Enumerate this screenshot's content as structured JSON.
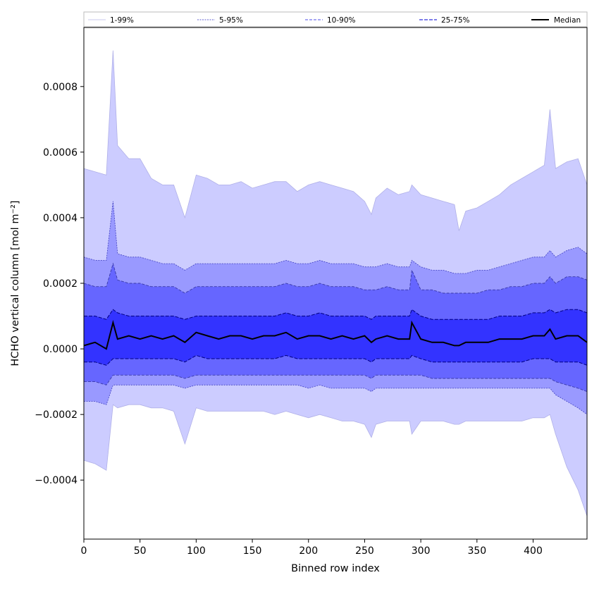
{
  "chart_data": {
    "type": "area",
    "title": "",
    "xlabel": "Binned row index",
    "ylabel": "HCHO vertical column [mol m⁻²]",
    "xlim": [
      0,
      448
    ],
    "ylim": [
      -0.00058,
      0.00098
    ],
    "xticks": [
      0,
      50,
      100,
      150,
      200,
      250,
      300,
      350,
      400
    ],
    "xtick_labels": [
      "0",
      "50",
      "100",
      "150",
      "200",
      "250",
      "300",
      "350",
      "400"
    ],
    "yticks": [
      -0.0004,
      -0.0002,
      0.0,
      0.0002,
      0.0004,
      0.0006,
      0.0008
    ],
    "ytick_labels": [
      "−0.0004",
      "−0.0002",
      "0.0000",
      "0.0002",
      "0.0004",
      "0.0006",
      "0.0008"
    ],
    "grid": false,
    "legend_position": "top (above plot, single row)",
    "legend": [
      "1-99%",
      "5-95%",
      "10-90%",
      "25-75%",
      "Median"
    ],
    "colors": {
      "band_1_99": "#ccccff",
      "band_5_95": "#9999ff",
      "band_10_90": "#6666ff",
      "band_25_75": "#3333ff",
      "median": "#000000",
      "line_1_99": "#b0b0e8",
      "line_5_95": "#4040c0",
      "line_10_90": "#3a3aa8",
      "line_25_75": "#000080"
    },
    "x": [
      0,
      10,
      20,
      26,
      30,
      40,
      50,
      60,
      70,
      80,
      90,
      100,
      110,
      120,
      130,
      140,
      150,
      160,
      170,
      180,
      190,
      200,
      210,
      220,
      230,
      240,
      250,
      256,
      260,
      270,
      280,
      290,
      292,
      300,
      310,
      320,
      330,
      334,
      340,
      350,
      360,
      370,
      380,
      390,
      400,
      410,
      415,
      420,
      430,
      440,
      448
    ],
    "series": [
      {
        "name": "1-99% upper",
        "values": [
          0.00055,
          0.00054,
          0.00053,
          0.00091,
          0.00062,
          0.00058,
          0.00058,
          0.00052,
          0.0005,
          0.0005,
          0.0004,
          0.00053,
          0.00052,
          0.0005,
          0.0005,
          0.00051,
          0.00049,
          0.0005,
          0.00051,
          0.00051,
          0.00048,
          0.0005,
          0.00051,
          0.0005,
          0.00049,
          0.00048,
          0.00045,
          0.00041,
          0.00046,
          0.00049,
          0.00047,
          0.00048,
          0.0005,
          0.00047,
          0.00046,
          0.00045,
          0.00044,
          0.00036,
          0.00042,
          0.00043,
          0.00045,
          0.00047,
          0.0005,
          0.00052,
          0.00054,
          0.00056,
          0.00073,
          0.00055,
          0.00057,
          0.00058,
          0.0005
        ]
      },
      {
        "name": "5-95% upper",
        "values": [
          0.00028,
          0.00027,
          0.00027,
          0.00045,
          0.00029,
          0.00028,
          0.00028,
          0.00027,
          0.00026,
          0.00026,
          0.00024,
          0.00026,
          0.00026,
          0.00026,
          0.00026,
          0.00026,
          0.00026,
          0.00026,
          0.00026,
          0.00027,
          0.00026,
          0.00026,
          0.00027,
          0.00026,
          0.00026,
          0.00026,
          0.00025,
          0.00025,
          0.00025,
          0.00026,
          0.00025,
          0.00025,
          0.00027,
          0.00025,
          0.00024,
          0.00024,
          0.00023,
          0.00023,
          0.00023,
          0.00024,
          0.00024,
          0.00025,
          0.00026,
          0.00027,
          0.00028,
          0.00028,
          0.0003,
          0.00028,
          0.0003,
          0.00031,
          0.00029
        ]
      },
      {
        "name": "10-90% upper",
        "values": [
          0.0002,
          0.00019,
          0.00019,
          0.00026,
          0.00021,
          0.0002,
          0.0002,
          0.00019,
          0.00019,
          0.00019,
          0.00017,
          0.00019,
          0.00019,
          0.00019,
          0.00019,
          0.00019,
          0.00019,
          0.00019,
          0.00019,
          0.0002,
          0.00019,
          0.00019,
          0.0002,
          0.00019,
          0.00019,
          0.00019,
          0.00018,
          0.00018,
          0.00018,
          0.00019,
          0.00018,
          0.00018,
          0.00024,
          0.00018,
          0.00018,
          0.00017,
          0.00017,
          0.00017,
          0.00017,
          0.00017,
          0.00018,
          0.00018,
          0.00019,
          0.00019,
          0.0002,
          0.0002,
          0.00022,
          0.0002,
          0.00022,
          0.00022,
          0.00021
        ]
      },
      {
        "name": "25-75% upper",
        "values": [
          0.0001,
          0.0001,
          9e-05,
          0.00012,
          0.00011,
          0.0001,
          0.0001,
          0.0001,
          0.0001,
          0.0001,
          9e-05,
          0.0001,
          0.0001,
          0.0001,
          0.0001,
          0.0001,
          0.0001,
          0.0001,
          0.0001,
          0.00011,
          0.0001,
          0.0001,
          0.00011,
          0.0001,
          0.0001,
          0.0001,
          0.0001,
          9e-05,
          0.0001,
          0.0001,
          0.0001,
          0.0001,
          0.00012,
          0.0001,
          9e-05,
          9e-05,
          9e-05,
          9e-05,
          9e-05,
          9e-05,
          9e-05,
          0.0001,
          0.0001,
          0.0001,
          0.00011,
          0.00011,
          0.00012,
          0.00011,
          0.00012,
          0.00012,
          0.00011
        ]
      },
      {
        "name": "Median",
        "values": [
          1e-05,
          2e-05,
          0.0,
          8e-05,
          3e-05,
          4e-05,
          3e-05,
          4e-05,
          3e-05,
          4e-05,
          2e-05,
          5e-05,
          4e-05,
          3e-05,
          4e-05,
          4e-05,
          3e-05,
          4e-05,
          4e-05,
          5e-05,
          3e-05,
          4e-05,
          4e-05,
          3e-05,
          4e-05,
          3e-05,
          4e-05,
          2e-05,
          3e-05,
          4e-05,
          3e-05,
          3e-05,
          8e-05,
          3e-05,
          2e-05,
          2e-05,
          1e-05,
          1e-05,
          2e-05,
          2e-05,
          2e-05,
          3e-05,
          3e-05,
          3e-05,
          4e-05,
          4e-05,
          6e-05,
          3e-05,
          4e-05,
          4e-05,
          2e-05
        ]
      },
      {
        "name": "25-75% lower",
        "values": [
          -4e-05,
          -4e-05,
          -5e-05,
          -3e-05,
          -3e-05,
          -3e-05,
          -3e-05,
          -3e-05,
          -3e-05,
          -3e-05,
          -4e-05,
          -2e-05,
          -3e-05,
          -3e-05,
          -3e-05,
          -3e-05,
          -3e-05,
          -3e-05,
          -3e-05,
          -2e-05,
          -3e-05,
          -3e-05,
          -3e-05,
          -3e-05,
          -3e-05,
          -3e-05,
          -3e-05,
          -4e-05,
          -3e-05,
          -3e-05,
          -3e-05,
          -3e-05,
          -2e-05,
          -3e-05,
          -4e-05,
          -4e-05,
          -4e-05,
          -4e-05,
          -4e-05,
          -4e-05,
          -4e-05,
          -4e-05,
          -4e-05,
          -4e-05,
          -3e-05,
          -3e-05,
          -3e-05,
          -4e-05,
          -4e-05,
          -4e-05,
          -5e-05
        ]
      },
      {
        "name": "10-90% lower",
        "values": [
          -0.0001,
          -0.0001,
          -0.00011,
          -8e-05,
          -8e-05,
          -8e-05,
          -8e-05,
          -8e-05,
          -8e-05,
          -8e-05,
          -9e-05,
          -8e-05,
          -8e-05,
          -8e-05,
          -8e-05,
          -8e-05,
          -8e-05,
          -8e-05,
          -8e-05,
          -8e-05,
          -8e-05,
          -8e-05,
          -8e-05,
          -8e-05,
          -8e-05,
          -8e-05,
          -8e-05,
          -9e-05,
          -8e-05,
          -8e-05,
          -8e-05,
          -8e-05,
          -8e-05,
          -8e-05,
          -9e-05,
          -9e-05,
          -9e-05,
          -9e-05,
          -9e-05,
          -9e-05,
          -9e-05,
          -9e-05,
          -9e-05,
          -9e-05,
          -9e-05,
          -9e-05,
          -9e-05,
          -0.0001,
          -0.00011,
          -0.00012,
          -0.00013
        ]
      },
      {
        "name": "5-95% lower",
        "values": [
          -0.00016,
          -0.00016,
          -0.00017,
          -0.00011,
          -0.00011,
          -0.00011,
          -0.00011,
          -0.00011,
          -0.00011,
          -0.00011,
          -0.00012,
          -0.00011,
          -0.00011,
          -0.00011,
          -0.00011,
          -0.00011,
          -0.00011,
          -0.00011,
          -0.00011,
          -0.00011,
          -0.00011,
          -0.00012,
          -0.00011,
          -0.00012,
          -0.00012,
          -0.00012,
          -0.00012,
          -0.00013,
          -0.00012,
          -0.00012,
          -0.00012,
          -0.00012,
          -0.00012,
          -0.00012,
          -0.00012,
          -0.00012,
          -0.00012,
          -0.00012,
          -0.00012,
          -0.00012,
          -0.00012,
          -0.00012,
          -0.00012,
          -0.00012,
          -0.00012,
          -0.00012,
          -0.00012,
          -0.00014,
          -0.00016,
          -0.00018,
          -0.0002
        ]
      },
      {
        "name": "1-99% lower",
        "values": [
          -0.00034,
          -0.00035,
          -0.00037,
          -0.00017,
          -0.00018,
          -0.00017,
          -0.00017,
          -0.00018,
          -0.00018,
          -0.00019,
          -0.00029,
          -0.00018,
          -0.00019,
          -0.00019,
          -0.00019,
          -0.00019,
          -0.00019,
          -0.00019,
          -0.0002,
          -0.00019,
          -0.0002,
          -0.00021,
          -0.0002,
          -0.00021,
          -0.00022,
          -0.00022,
          -0.00023,
          -0.00027,
          -0.00023,
          -0.00022,
          -0.00022,
          -0.00022,
          -0.00026,
          -0.00022,
          -0.00022,
          -0.00022,
          -0.00023,
          -0.00023,
          -0.00022,
          -0.00022,
          -0.00022,
          -0.00022,
          -0.00022,
          -0.00022,
          -0.00021,
          -0.00021,
          -0.0002,
          -0.00026,
          -0.00036,
          -0.00043,
          -0.00051
        ]
      }
    ]
  }
}
